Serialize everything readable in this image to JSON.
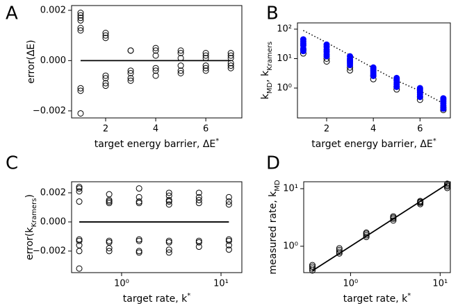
{
  "chart_data": [
    {
      "type": "scatter",
      "label": "A",
      "x_label": [
        {
          "text": "target energy barrier, ΔE"
        },
        {
          "text": "*",
          "sup": true
        }
      ],
      "y_label": [
        {
          "text": "error(ΔE)"
        }
      ],
      "xlim": [
        0.64,
        7.44
      ],
      "ylim": [
        -0.00228,
        0.00219
      ],
      "xticks": [
        2,
        4,
        6
      ],
      "yticks": [
        {
          "value": -0.002,
          "label": "−0.002"
        },
        {
          "value": 0,
          "label": "0.000"
        },
        {
          "value": 0.002,
          "label": "0.002"
        }
      ],
      "series": [
        {
          "color": "#000000",
          "marker": "open",
          "x": [
            1,
            1,
            1,
            1,
            1,
            1,
            1,
            1,
            1,
            2,
            2,
            2,
            2,
            2,
            2,
            2,
            3,
            3,
            3,
            3,
            3,
            3,
            4,
            4,
            4,
            4,
            4,
            4,
            5,
            5,
            5,
            5,
            5,
            5,
            6,
            6,
            6,
            6,
            6,
            6,
            7,
            7,
            7,
            7,
            7,
            7
          ],
          "y": [
            0.0019,
            0.0018,
            0.0017,
            0.0016,
            0.0013,
            0.0012,
            -0.0011,
            -0.0012,
            -0.0021,
            0.0011,
            0.001,
            0.0009,
            -0.0006,
            -0.0007,
            -0.0009,
            -0.001,
            0.0004,
            0.0004,
            -0.0004,
            -0.0005,
            -0.0007,
            -0.0008,
            0.0005,
            0.0004,
            0.0002,
            -0.0003,
            -0.0004,
            -0.0006,
            0.0004,
            0.0003,
            0.0001,
            -0.0002,
            -0.0004,
            -0.0005,
            0.0003,
            0.0002,
            0.0001,
            -0.0002,
            -0.0003,
            -0.0004,
            0.0003,
            0.0002,
            0.0001,
            -0.0001,
            -0.0002,
            -0.0003
          ]
        }
      ],
      "lines": [
        {
          "color": "#000000",
          "style": "solid",
          "x": [
            1,
            7
          ],
          "y": [
            0,
            0
          ]
        }
      ]
    },
    {
      "type": "scatter",
      "label": "B",
      "yscale": "log",
      "x_label": [
        {
          "text": "target energy barrier, ΔE"
        },
        {
          "text": "*",
          "sup": true
        }
      ],
      "y_label": [
        {
          "text": "k"
        },
        {
          "text": "MD",
          "sub": true
        },
        {
          "text": ", k"
        },
        {
          "text": "Kramers",
          "sub": true
        }
      ],
      "xlim": [
        0.75,
        7.3
      ],
      "ylim": [
        0.097,
        163
      ],
      "xticks": [
        2,
        4,
        6
      ],
      "yticks": [
        {
          "value": 1,
          "label": "10⁰"
        },
        {
          "value": 10,
          "label": "10¹"
        },
        {
          "value": 100,
          "label": "10²"
        }
      ],
      "series": [
        {
          "color": "#000000",
          "marker": "open",
          "x": [
            1,
            1,
            2,
            2,
            3,
            3,
            4,
            4,
            5,
            5,
            6,
            6,
            7,
            7
          ],
          "y": [
            15,
            20,
            8,
            10,
            4,
            5,
            2,
            2.6,
            0.9,
            1.1,
            0.4,
            0.5,
            0.18,
            0.22
          ]
        },
        {
          "color": "#0000ff",
          "marker": "filled",
          "x": [
            1,
            1,
            1,
            1,
            1,
            1,
            2,
            2,
            2,
            2,
            2,
            2,
            3,
            3,
            3,
            3,
            3,
            3,
            4,
            4,
            4,
            4,
            4,
            4,
            5,
            5,
            5,
            5,
            5,
            5,
            6,
            6,
            6,
            6,
            6,
            6,
            7,
            7,
            7,
            7,
            7,
            7
          ],
          "y": [
            45,
            38,
            32,
            28,
            22,
            18,
            30,
            25,
            20,
            17,
            14,
            12,
            12,
            10,
            9,
            8,
            7,
            6,
            5,
            4.5,
            4,
            3.5,
            3,
            2.6,
            2.2,
            2,
            1.8,
            1.5,
            1.3,
            1.1,
            1,
            0.9,
            0.8,
            0.7,
            0.6,
            0.5,
            0.45,
            0.4,
            0.35,
            0.3,
            0.25,
            0.2
          ]
        }
      ],
      "lines": [
        {
          "color": "#000000",
          "style": "dotted",
          "x": [
            1,
            2,
            3,
            4,
            5,
            6,
            7
          ],
          "y": [
            90,
            35,
            13,
            4.8,
            1.8,
            0.8,
            0.3
          ]
        }
      ]
    },
    {
      "type": "scatter",
      "label": "C",
      "xscale": "log",
      "x_label": [
        {
          "text": "target rate, k"
        },
        {
          "text": "*",
          "sup": true
        }
      ],
      "y_label": [
        {
          "text": "error(k"
        },
        {
          "text": "Kramers",
          "sub": true
        },
        {
          "text": ")"
        }
      ],
      "xlim": [
        0.314,
        16.2
      ],
      "ylim": [
        -0.00348,
        0.00276
      ],
      "xticks": [
        {
          "value": 1,
          "label": "10⁰"
        },
        {
          "value": 10,
          "label": "10¹"
        }
      ],
      "yticks": [
        {
          "value": -0.002,
          "label": "−0.002"
        },
        {
          "value": 0,
          "label": "0.000"
        },
        {
          "value": 0.002,
          "label": "0.002"
        }
      ],
      "series": [
        {
          "color": "#000000",
          "marker": "open",
          "x": [
            0.375,
            0.375,
            0.375,
            0.375,
            0.375,
            0.375,
            0.375,
            0.375,
            0.375,
            0.75,
            0.75,
            0.75,
            0.75,
            0.75,
            0.75,
            0.75,
            0.75,
            1.5,
            1.5,
            1.5,
            1.5,
            1.5,
            1.5,
            1.5,
            1.5,
            3,
            3,
            3,
            3,
            3,
            3,
            3,
            3,
            3,
            6,
            6,
            6,
            6,
            6,
            6,
            6,
            12,
            12,
            12,
            12,
            12,
            12,
            12
          ],
          "y": [
            0.0024,
            0.0023,
            0.0021,
            0.0014,
            -0.0012,
            -0.0013,
            -0.0016,
            -0.002,
            -0.0032,
            0.0019,
            0.0015,
            0.0014,
            0.0013,
            -0.0013,
            -0.0014,
            -0.0018,
            -0.002,
            0.0023,
            0.0017,
            0.0014,
            0.0013,
            -0.0012,
            -0.0013,
            -0.002,
            -0.0021,
            0.002,
            0.0018,
            0.0015,
            0.0014,
            0.0012,
            -0.0013,
            -0.0014,
            -0.0019,
            -0.0021,
            0.002,
            0.0017,
            0.0015,
            0.0013,
            -0.0013,
            -0.0014,
            -0.0017,
            0.0017,
            0.0014,
            0.0012,
            -0.0012,
            -0.0013,
            -0.0016,
            -0.0019
          ]
        }
      ],
      "lines": [
        {
          "color": "#000000",
          "style": "solid",
          "x": [
            0.375,
            12
          ],
          "y": [
            0,
            0
          ]
        }
      ]
    },
    {
      "type": "scatter",
      "label": "D",
      "xscale": "log",
      "yscale": "log",
      "x_label": [
        {
          "text": "target rate, k"
        },
        {
          "text": "*",
          "sup": true
        }
      ],
      "y_label": [
        {
          "text": "measured rate, k"
        },
        {
          "text": "MD",
          "sub": true
        }
      ],
      "xlim": [
        0.3,
        13
      ],
      "ylim": [
        0.348,
        13.2
      ],
      "xticks": [
        {
          "value": 1,
          "label": "10⁰"
        },
        {
          "value": 10,
          "label": "10¹"
        }
      ],
      "yticks": [
        {
          "value": 1,
          "label": "10⁰"
        },
        {
          "value": 10,
          "label": "10¹"
        }
      ],
      "series": [
        {
          "color": "#000000",
          "marker": "open",
          "x": [
            0.375,
            0.375,
            0.375,
            0.375,
            0.75,
            0.75,
            0.75,
            0.75,
            1.5,
            1.5,
            1.5,
            1.5,
            3,
            3,
            3,
            3,
            6,
            6,
            6,
            6,
            12,
            12,
            12,
            12
          ],
          "y": [
            0.38,
            0.41,
            0.44,
            0.47,
            0.75,
            0.8,
            0.86,
            0.92,
            1.45,
            1.55,
            1.65,
            1.72,
            2.8,
            3,
            3.15,
            3.3,
            5.4,
            5.7,
            5.9,
            6.1,
            10.3,
            11,
            11.5,
            12.2
          ]
        }
      ],
      "lines": [
        {
          "color": "#000000",
          "style": "solid",
          "x": [
            0.375,
            12
          ],
          "y": [
            0.375,
            12
          ]
        }
      ]
    }
  ]
}
